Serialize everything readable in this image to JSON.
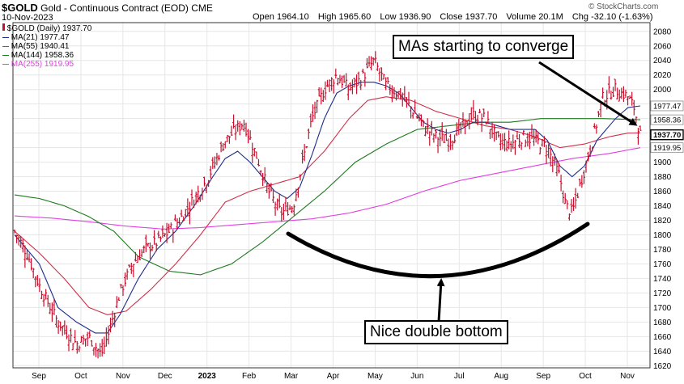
{
  "header": {
    "symbol": "$GOLD",
    "name": "Gold - Continuous Contract (EOD)",
    "exchange": "CME",
    "date": "10-Nov-2023",
    "source": "© StockCharts.com",
    "ohlc": {
      "open_label": "Open",
      "open": "1964.10",
      "high_label": "High",
      "high": "1965.60",
      "low_label": "Low",
      "low": "1936.90",
      "close_label": "Close",
      "close": "1937.70",
      "volume_label": "Volume",
      "volume": "20.1M",
      "chg_label": "Chg",
      "chg": "-32.10 (-1.63%)"
    }
  },
  "legend": [
    {
      "text": "$GOLD (Daily) 1937.70",
      "color": "#c8102e"
    },
    {
      "text": "MA(21) 1977.47",
      "color": "#1f2d8c"
    },
    {
      "text": "MA(55) 1940.41",
      "color": "#d0304a"
    },
    {
      "text": "MA(144) 1958.36",
      "color": "#1e7a1e"
    },
    {
      "text": "MA(255) 1919.95",
      "color": "#e040e0"
    }
  ],
  "annotations": {
    "converge": "MAs starting to converge",
    "double_bottom": "Nice double bottom"
  },
  "chart_data": {
    "type": "line",
    "title": "$GOLD Gold - Continuous Contract (EOD) CME",
    "y_axis": {
      "position": "right",
      "range": [
        1617,
        2092
      ],
      "ticks": [
        1620,
        1640,
        1660,
        1680,
        1700,
        1720,
        1740,
        1760,
        1780,
        1800,
        1820,
        1840,
        1860,
        1880,
        1900,
        1920,
        1940,
        1960,
        1980,
        2000,
        2020,
        2040,
        2060,
        2080
      ],
      "grid": true
    },
    "x_axis": {
      "ticks": [
        "Sep",
        "Oct",
        "Nov",
        "Dec",
        "2023",
        "Feb",
        "Mar",
        "Apr",
        "May",
        "Jun",
        "Jul",
        "Aug",
        "Sep",
        "Oct",
        "Nov"
      ],
      "grid": true
    },
    "price_anchors": {
      "description": "approximate daily close path read from chart, [week_index, value]",
      "points": [
        [
          0,
          1805
        ],
        [
          2,
          1775
        ],
        [
          4,
          1730
        ],
        [
          7,
          1680
        ],
        [
          10,
          1650
        ],
        [
          12,
          1660
        ],
        [
          14,
          1635
        ],
        [
          15,
          1660
        ],
        [
          17,
          1720
        ],
        [
          19,
          1760
        ],
        [
          21,
          1780
        ],
        [
          23,
          1790
        ],
        [
          25,
          1805
        ],
        [
          27,
          1825
        ],
        [
          29,
          1850
        ],
        [
          31,
          1875
        ],
        [
          34,
          1930
        ],
        [
          37,
          1955
        ],
        [
          39,
          1910
        ],
        [
          41,
          1860
        ],
        [
          43,
          1830
        ],
        [
          45,
          1840
        ],
        [
          46,
          1880
        ],
        [
          48,
          1960
        ],
        [
          50,
          2000
        ],
        [
          52,
          2020
        ],
        [
          54,
          2000
        ],
        [
          56,
          2015
        ],
        [
          58,
          2040
        ],
        [
          60,
          2005
        ],
        [
          62,
          1995
        ],
        [
          64,
          1975
        ],
        [
          66,
          1950
        ],
        [
          68,
          1935
        ],
        [
          70,
          1930
        ],
        [
          72,
          1945
        ],
        [
          74,
          1965
        ],
        [
          76,
          1960
        ],
        [
          78,
          1930
        ],
        [
          80,
          1925
        ],
        [
          82,
          1935
        ],
        [
          84,
          1930
        ],
        [
          86,
          1920
        ],
        [
          88,
          1880
        ],
        [
          89,
          1840
        ],
        [
          90,
          1830
        ],
        [
          91,
          1860
        ],
        [
          93,
          1920
        ],
        [
          95,
          1990
        ],
        [
          97,
          2000
        ],
        [
          99,
          1990
        ],
        [
          100,
          1975
        ],
        [
          101,
          1937.7
        ]
      ]
    },
    "series": [
      {
        "name": "$GOLD (Daily)",
        "last": 1937.7,
        "color": "#c8102e",
        "style": "ohlc-bars",
        "values": [
          1805,
          1775,
          1730,
          1680,
          1650,
          1660,
          1635,
          1660,
          1720,
          1760,
          1780,
          1790,
          1805,
          1825,
          1850,
          1875,
          1930,
          1955,
          1910,
          1860,
          1830,
          1840,
          1880,
          1960,
          2000,
          2020,
          2000,
          2015,
          2040,
          2005,
          1995,
          1975,
          1950,
          1935,
          1930,
          1945,
          1965,
          1960,
          1930,
          1925,
          1935,
          1930,
          1920,
          1880,
          1840,
          1830,
          1860,
          1920,
          1990,
          2000,
          1990,
          1975,
          1937.7
        ]
      },
      {
        "name": "MA(21)",
        "last": 1977.47,
        "color": "#1f2d8c",
        "anchors": [
          [
            0,
            1800
          ],
          [
            4,
            1760
          ],
          [
            7,
            1700
          ],
          [
            10,
            1680
          ],
          [
            13,
            1665
          ],
          [
            15,
            1665
          ],
          [
            17,
            1690
          ],
          [
            20,
            1740
          ],
          [
            23,
            1780
          ],
          [
            26,
            1805
          ],
          [
            29,
            1840
          ],
          [
            32,
            1880
          ],
          [
            34,
            1905
          ],
          [
            36,
            1915
          ],
          [
            38,
            1900
          ],
          [
            40,
            1880
          ],
          [
            42,
            1860
          ],
          [
            44,
            1850
          ],
          [
            46,
            1865
          ],
          [
            48,
            1910
          ],
          [
            50,
            1960
          ],
          [
            52,
            1995
          ],
          [
            54,
            2005
          ],
          [
            56,
            2010
          ],
          [
            58,
            2010
          ],
          [
            60,
            2005
          ],
          [
            62,
            1995
          ],
          [
            64,
            1975
          ],
          [
            66,
            1955
          ],
          [
            68,
            1945
          ],
          [
            70,
            1940
          ],
          [
            72,
            1945
          ],
          [
            74,
            1955
          ],
          [
            76,
            1955
          ],
          [
            78,
            1950
          ],
          [
            80,
            1945
          ],
          [
            82,
            1945
          ],
          [
            84,
            1945
          ],
          [
            86,
            1930
          ],
          [
            88,
            1895
          ],
          [
            90,
            1880
          ],
          [
            92,
            1895
          ],
          [
            94,
            1930
          ],
          [
            97,
            1960
          ],
          [
            99,
            1975
          ],
          [
            101,
            1977.47
          ]
        ]
      },
      {
        "name": "MA(55)",
        "last": 1940.41,
        "color": "#d0304a",
        "anchors": [
          [
            0,
            1805
          ],
          [
            4,
            1775
          ],
          [
            8,
            1740
          ],
          [
            12,
            1700
          ],
          [
            15,
            1690
          ],
          [
            18,
            1695
          ],
          [
            22,
            1725
          ],
          [
            26,
            1760
          ],
          [
            30,
            1800
          ],
          [
            34,
            1845
          ],
          [
            38,
            1860
          ],
          [
            42,
            1870
          ],
          [
            46,
            1880
          ],
          [
            50,
            1915
          ],
          [
            54,
            1960
          ],
          [
            57,
            1985
          ],
          [
            60,
            1990
          ],
          [
            64,
            1985
          ],
          [
            68,
            1970
          ],
          [
            72,
            1960
          ],
          [
            76,
            1950
          ],
          [
            80,
            1945
          ],
          [
            84,
            1935
          ],
          [
            88,
            1920
          ],
          [
            92,
            1925
          ],
          [
            96,
            1935
          ],
          [
            99,
            1940
          ],
          [
            101,
            1940.41
          ]
        ]
      },
      {
        "name": "MA(144)",
        "last": 1958.36,
        "color": "#1e7a1e",
        "anchors": [
          [
            0,
            1855
          ],
          [
            4,
            1850
          ],
          [
            8,
            1840
          ],
          [
            12,
            1825
          ],
          [
            16,
            1805
          ],
          [
            20,
            1770
          ],
          [
            25,
            1750
          ],
          [
            30,
            1745
          ],
          [
            35,
            1760
          ],
          [
            40,
            1790
          ],
          [
            45,
            1825
          ],
          [
            50,
            1860
          ],
          [
            55,
            1900
          ],
          [
            60,
            1925
          ],
          [
            65,
            1945
          ],
          [
            70,
            1950
          ],
          [
            75,
            1955
          ],
          [
            80,
            1955
          ],
          [
            85,
            1960
          ],
          [
            90,
            1960
          ],
          [
            95,
            1960
          ],
          [
            101,
            1958.36
          ]
        ]
      },
      {
        "name": "MA(255)",
        "last": 1919.95,
        "color": "#e040e0",
        "anchors": [
          [
            0,
            1826
          ],
          [
            6,
            1823
          ],
          [
            12,
            1818
          ],
          [
            18,
            1812
          ],
          [
            24,
            1808
          ],
          [
            30,
            1810
          ],
          [
            36,
            1814
          ],
          [
            42,
            1818
          ],
          [
            48,
            1822
          ],
          [
            54,
            1830
          ],
          [
            60,
            1842
          ],
          [
            66,
            1860
          ],
          [
            72,
            1875
          ],
          [
            78,
            1885
          ],
          [
            84,
            1895
          ],
          [
            90,
            1905
          ],
          [
            96,
            1912
          ],
          [
            101,
            1919.95
          ]
        ]
      }
    ],
    "price_labels": [
      {
        "text": "1977.47",
        "value": 1977.47
      },
      {
        "text": "1958.36",
        "value": 1958.36
      },
      {
        "text": "1937.70",
        "value": 1937.7
      },
      {
        "text": "1919.95",
        "value": 1919.95
      }
    ]
  }
}
